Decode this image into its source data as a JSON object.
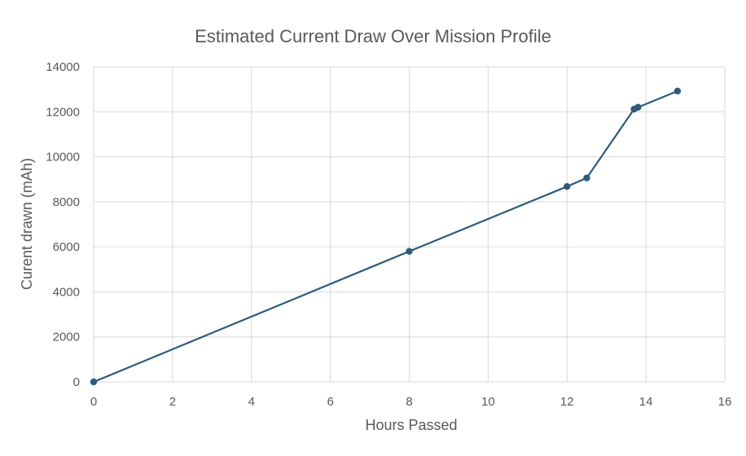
{
  "chart_data": {
    "type": "scatter",
    "title": "Estimated Current Draw Over Mission Profile",
    "xlabel": "Hours Passed",
    "ylabel": "Curent drawn (mAh)",
    "xlim": [
      0,
      16
    ],
    "ylim": [
      0,
      14000
    ],
    "xticks": [
      0,
      2,
      4,
      6,
      8,
      10,
      12,
      14,
      16
    ],
    "yticks": [
      0,
      2000,
      4000,
      6000,
      8000,
      10000,
      12000,
      14000
    ],
    "grid": true,
    "legend": "none",
    "series": [
      {
        "color": "#2f5b7c",
        "points": [
          {
            "x": 0,
            "y": 0
          },
          {
            "x": 8,
            "y": 5800
          },
          {
            "x": 12,
            "y": 8680
          },
          {
            "x": 12.5,
            "y": 9060
          },
          {
            "x": 13.7,
            "y": 12120
          },
          {
            "x": 13.8,
            "y": 12200
          },
          {
            "x": 14.8,
            "y": 12920
          }
        ]
      }
    ]
  }
}
